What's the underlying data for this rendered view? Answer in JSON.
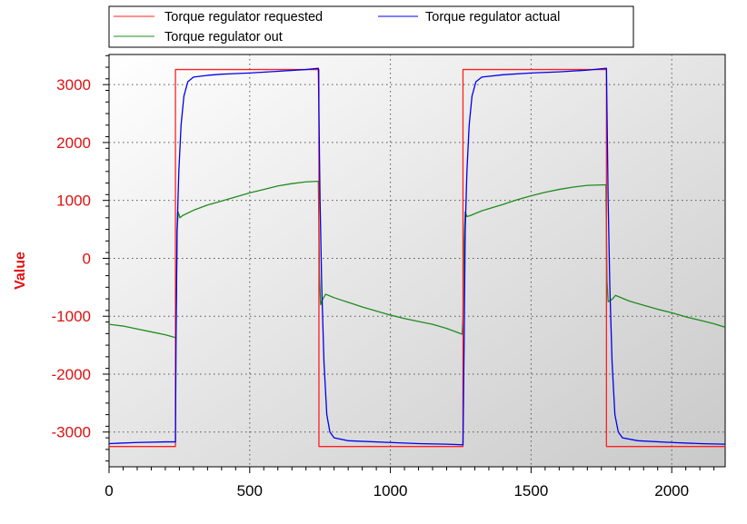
{
  "chart_data": {
    "type": "line",
    "ylabel": "Value",
    "xlabel": "",
    "xlim": [
      0,
      2190
    ],
    "ylim": [
      -3600,
      3520
    ],
    "x_ticks": [
      0,
      500,
      1000,
      1500,
      2000
    ],
    "y_ticks": [
      3000,
      2000,
      1000,
      0,
      -1000,
      -2000,
      -3000
    ],
    "grid": true,
    "legend_placement": "top",
    "series": [
      {
        "name": "Torque regulator requested",
        "color": "#ff2020",
        "points": [
          [
            0,
            -3250
          ],
          [
            236,
            -3250
          ],
          [
            236,
            3260
          ],
          [
            746,
            3260
          ],
          [
            746,
            -3250
          ],
          [
            1258,
            -3250
          ],
          [
            1258,
            3260
          ],
          [
            1768,
            3260
          ],
          [
            1768,
            -3250
          ],
          [
            2190,
            -3250
          ]
        ]
      },
      {
        "name": "Torque regulator actual",
        "color": "#0000ee",
        "points": [
          [
            0,
            -3200
          ],
          [
            100,
            -3180
          ],
          [
            200,
            -3170
          ],
          [
            236,
            -3170
          ],
          [
            238,
            -1500
          ],
          [
            242,
            500
          ],
          [
            248,
            1500
          ],
          [
            256,
            2300
          ],
          [
            266,
            2800
          ],
          [
            280,
            3050
          ],
          [
            300,
            3130
          ],
          [
            350,
            3160
          ],
          [
            400,
            3180
          ],
          [
            500,
            3200
          ],
          [
            600,
            3230
          ],
          [
            700,
            3260
          ],
          [
            740,
            3280
          ],
          [
            744,
            3280
          ],
          [
            750,
            1000
          ],
          [
            756,
            -500
          ],
          [
            764,
            -1800
          ],
          [
            774,
            -2700
          ],
          [
            785,
            -3000
          ],
          [
            800,
            -3100
          ],
          [
            850,
            -3150
          ],
          [
            1000,
            -3180
          ],
          [
            1100,
            -3200
          ],
          [
            1200,
            -3210
          ],
          [
            1255,
            -3220
          ],
          [
            1258,
            -3220
          ],
          [
            1262,
            -1500
          ],
          [
            1266,
            500
          ],
          [
            1272,
            1500
          ],
          [
            1280,
            2300
          ],
          [
            1290,
            2800
          ],
          [
            1304,
            3050
          ],
          [
            1325,
            3130
          ],
          [
            1400,
            3170
          ],
          [
            1500,
            3200
          ],
          [
            1600,
            3220
          ],
          [
            1700,
            3250
          ],
          [
            1764,
            3280
          ],
          [
            1768,
            3280
          ],
          [
            1774,
            1000
          ],
          [
            1780,
            -500
          ],
          [
            1788,
            -1800
          ],
          [
            1798,
            -2700
          ],
          [
            1810,
            -3000
          ],
          [
            1825,
            -3100
          ],
          [
            1880,
            -3150
          ],
          [
            2000,
            -3180
          ],
          [
            2100,
            -3200
          ],
          [
            2190,
            -3210
          ]
        ]
      },
      {
        "name": "Torque regulator out",
        "color": "#1e8c1e",
        "points": [
          [
            0,
            -1140
          ],
          [
            50,
            -1170
          ],
          [
            100,
            -1220
          ],
          [
            150,
            -1270
          ],
          [
            200,
            -1320
          ],
          [
            236,
            -1370
          ],
          [
            238,
            -1100
          ],
          [
            242,
            500
          ],
          [
            246,
            800
          ],
          [
            252,
            700
          ],
          [
            262,
            740
          ],
          [
            300,
            830
          ],
          [
            350,
            920
          ],
          [
            400,
            990
          ],
          [
            450,
            1060
          ],
          [
            500,
            1130
          ],
          [
            550,
            1190
          ],
          [
            600,
            1250
          ],
          [
            650,
            1290
          ],
          [
            700,
            1320
          ],
          [
            744,
            1330
          ],
          [
            748,
            -300
          ],
          [
            752,
            -800
          ],
          [
            760,
            -700
          ],
          [
            770,
            -620
          ],
          [
            800,
            -680
          ],
          [
            850,
            -760
          ],
          [
            900,
            -840
          ],
          [
            950,
            -910
          ],
          [
            1000,
            -980
          ],
          [
            1050,
            -1040
          ],
          [
            1100,
            -1090
          ],
          [
            1150,
            -1140
          ],
          [
            1200,
            -1210
          ],
          [
            1255,
            -1310
          ],
          [
            1258,
            -1000
          ],
          [
            1262,
            300
          ],
          [
            1266,
            800
          ],
          [
            1272,
            720
          ],
          [
            1285,
            740
          ],
          [
            1325,
            820
          ],
          [
            1400,
            930
          ],
          [
            1450,
            1010
          ],
          [
            1500,
            1080
          ],
          [
            1550,
            1140
          ],
          [
            1600,
            1190
          ],
          [
            1650,
            1230
          ],
          [
            1700,
            1260
          ],
          [
            1766,
            1270
          ],
          [
            1770,
            -400
          ],
          [
            1774,
            -750
          ],
          [
            1790,
            -700
          ],
          [
            1800,
            -640
          ],
          [
            1850,
            -740
          ],
          [
            1900,
            -810
          ],
          [
            1950,
            -880
          ],
          [
            2000,
            -940
          ],
          [
            2050,
            -1010
          ],
          [
            2100,
            -1070
          ],
          [
            2150,
            -1130
          ],
          [
            2190,
            -1190
          ]
        ]
      }
    ]
  }
}
